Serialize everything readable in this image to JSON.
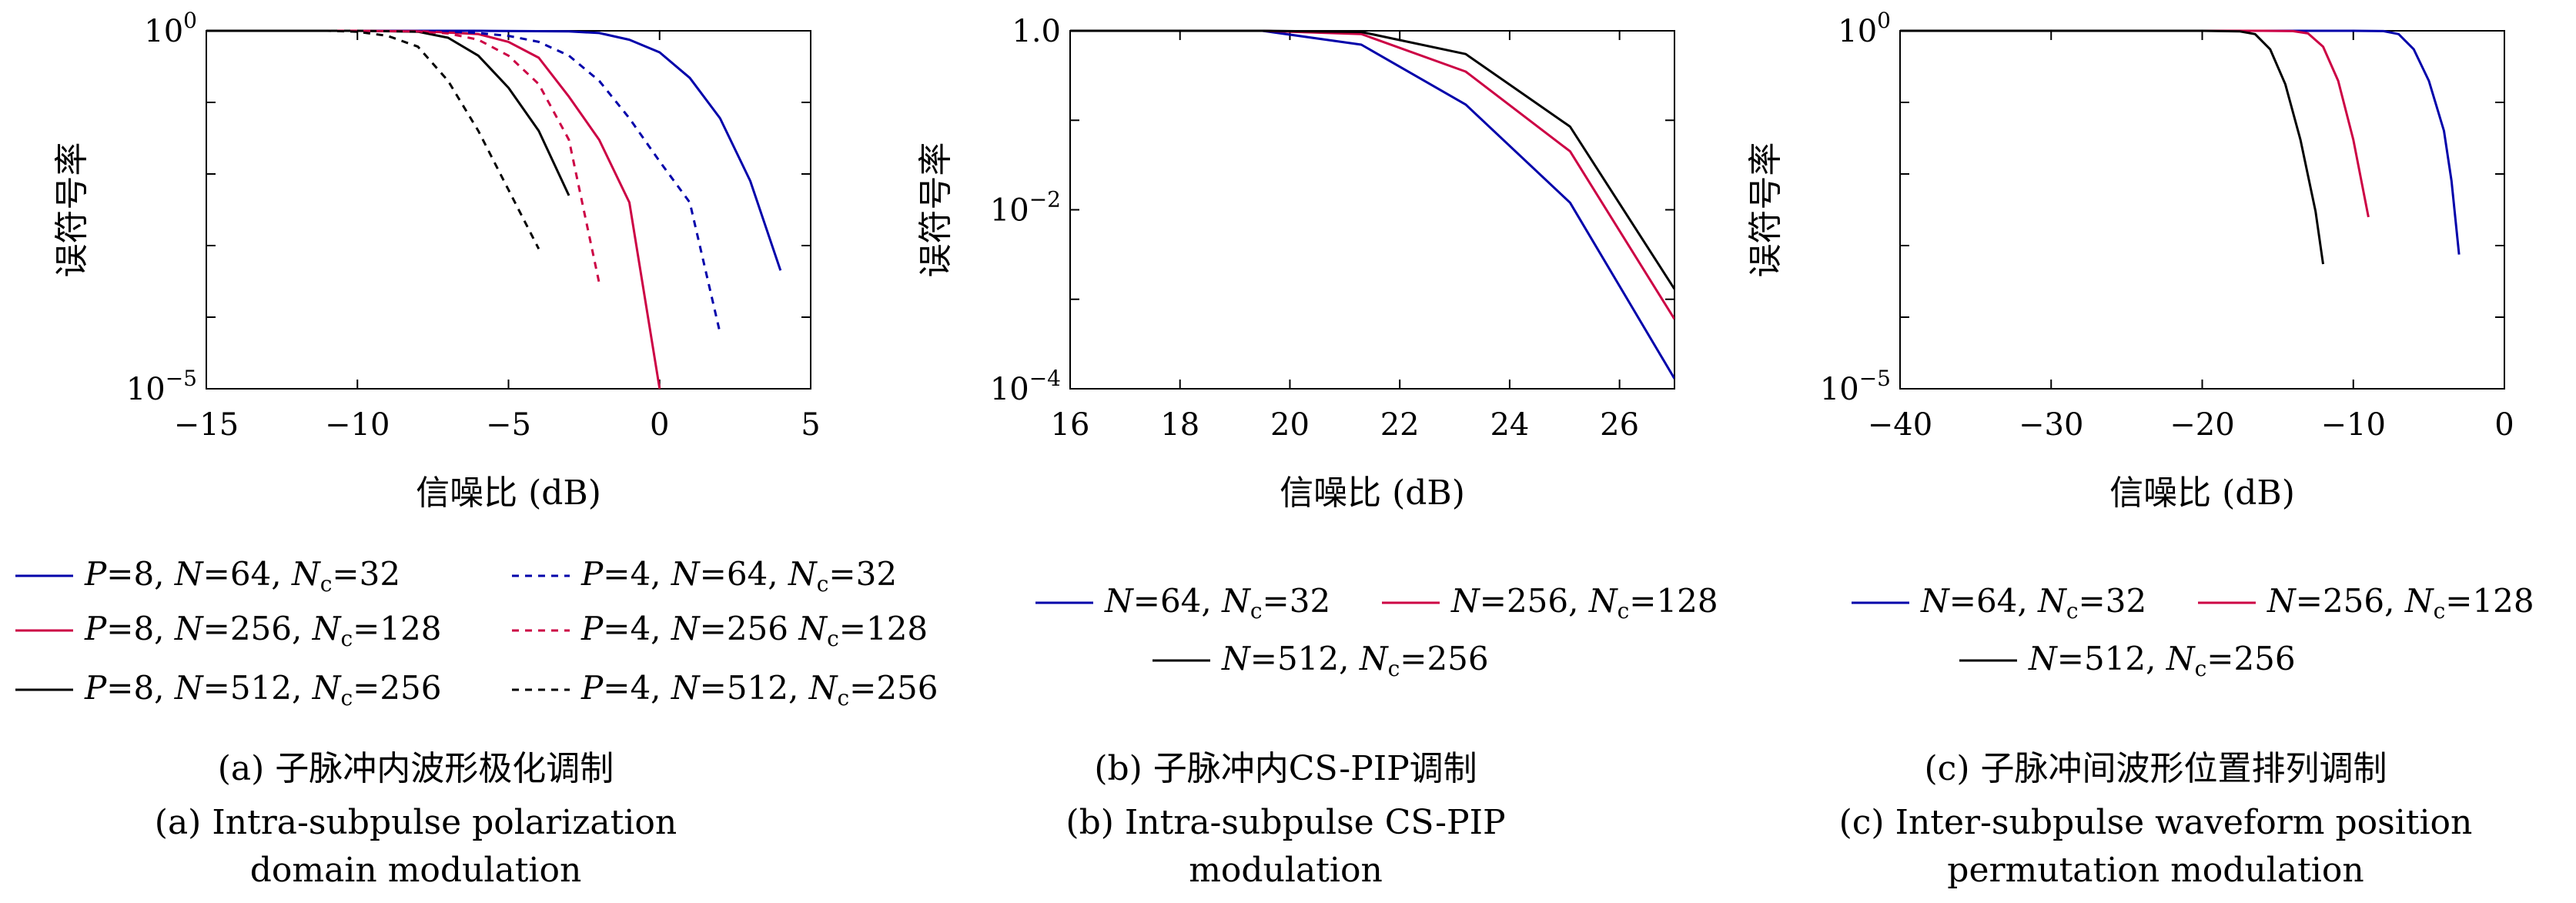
{
  "colors": {
    "blue": "#0000aa",
    "red": "#cc0044",
    "black": "#000000"
  },
  "chart_data": [
    {
      "id": "a",
      "type": "line",
      "xscale": "linear",
      "yscale": "log",
      "xlim": [
        -15,
        5
      ],
      "ylim": [
        1e-05,
        1
      ],
      "xticks": [
        -15,
        -10,
        -5,
        0,
        5
      ],
      "xtick_labels": [
        "−15",
        "−10",
        "−5",
        "0",
        "5"
      ],
      "yticks": [
        {
          "value": 1,
          "base": "10",
          "exp": "0"
        },
        {
          "value": 1e-05,
          "base": "10",
          "exp": "−5"
        }
      ],
      "xlabel": "信噪比 (dB)",
      "ylabel": "误符号率",
      "caption_cn": "(a) 子脉冲内波形极化调制",
      "caption_en": [
        "(a) Intra-subpulse polarization",
        "domain modulation"
      ],
      "series": [
        {
          "legend": [
            "P",
            "=8, ",
            "N",
            "=64, ",
            "N",
            "c",
            "=32"
          ],
          "color": "#0000aa",
          "dash": false,
          "points": [
            [
              -15,
              1
            ],
            [
              -10,
              1
            ],
            [
              -6,
              1
            ],
            [
              -3,
              0.98
            ],
            [
              -2,
              0.93
            ],
            [
              -1,
              0.75
            ],
            [
              0,
              0.5
            ],
            [
              1,
              0.22
            ],
            [
              2,
              0.06
            ],
            [
              3,
              0.008
            ],
            [
              4,
              0.00045
            ]
          ]
        },
        {
          "legend": [
            "P",
            "=8, ",
            "N",
            "=256, ",
            "N",
            "c",
            "=128"
          ],
          "color": "#cc0044",
          "dash": false,
          "points": [
            [
              -15,
              1
            ],
            [
              -10,
              1
            ],
            [
              -8,
              0.99
            ],
            [
              -6,
              0.9
            ],
            [
              -5,
              0.7
            ],
            [
              -4,
              0.42
            ],
            [
              -3,
              0.12
            ],
            [
              -2,
              0.03
            ],
            [
              -1,
              0.004
            ],
            [
              0,
              1e-05
            ]
          ]
        },
        {
          "legend": [
            "P",
            "=8, ",
            "N",
            "=512, ",
            "N",
            "c",
            "=256"
          ],
          "color": "#000000",
          "dash": false,
          "points": [
            [
              -15,
              1
            ],
            [
              -10,
              1
            ],
            [
              -8,
              0.97
            ],
            [
              -7,
              0.8
            ],
            [
              -6,
              0.45
            ],
            [
              -5,
              0.16
            ],
            [
              -4,
              0.04
            ],
            [
              -3,
              0.005
            ]
          ]
        },
        {
          "legend": [
            "P",
            "=4, ",
            "N",
            "=64, ",
            "N",
            "c",
            "=32"
          ],
          "color": "#0000aa",
          "dash": true,
          "points": [
            [
              -15,
              1
            ],
            [
              -10,
              1
            ],
            [
              -7,
              0.98
            ],
            [
              -6,
              0.93
            ],
            [
              -5,
              0.85
            ],
            [
              -4,
              0.7
            ],
            [
              -3,
              0.45
            ],
            [
              -2,
              0.2
            ],
            [
              -1,
              0.06
            ],
            [
              0,
              0.015
            ],
            [
              1,
              0.004
            ],
            [
              2,
              6e-05
            ]
          ]
        },
        {
          "legend": [
            "P",
            "=4, ",
            "N",
            "=256 ",
            "N",
            "c",
            "=128"
          ],
          "color": "#cc0044",
          "dash": true,
          "points": [
            [
              -15,
              1
            ],
            [
              -10,
              1
            ],
            [
              -8,
              0.98
            ],
            [
              -7,
              0.92
            ],
            [
              -6,
              0.75
            ],
            [
              -5,
              0.45
            ],
            [
              -4,
              0.18
            ],
            [
              -3,
              0.03
            ],
            [
              -2,
              0.0003
            ]
          ]
        },
        {
          "legend": [
            "P",
            "=4, ",
            "N",
            "=512, ",
            "N",
            "c",
            "=256"
          ],
          "color": "#000000",
          "dash": true,
          "points": [
            [
              -15,
              1
            ],
            [
              -11,
              1
            ],
            [
              -10,
              0.97
            ],
            [
              -9,
              0.85
            ],
            [
              -8,
              0.6
            ],
            [
              -7,
              0.2
            ],
            [
              -6,
              0.04
            ],
            [
              -5,
              0.006
            ],
            [
              -4,
              0.0009
            ]
          ]
        }
      ]
    },
    {
      "id": "b",
      "type": "line",
      "xscale": "linear",
      "yscale": "log",
      "xlim": [
        16,
        27
      ],
      "ylim": [
        0.0001,
        1
      ],
      "xticks": [
        16,
        18,
        20,
        22,
        24,
        26
      ],
      "xtick_labels": [
        "16",
        "18",
        "20",
        "22",
        "24",
        "26"
      ],
      "yticks": [
        {
          "value": 1,
          "base": "1.0",
          "exp": ""
        },
        {
          "value": 0.01,
          "base": "10",
          "exp": "−2"
        },
        {
          "value": 0.0001,
          "base": "10",
          "exp": "−4"
        }
      ],
      "xlabel": "信噪比 (dB)",
      "ylabel": "误符号率",
      "caption_cn": "(b) 子脉冲内CS-PIP调制",
      "caption_en": [
        "(b) Intra-subpulse CS-PIP",
        "modulation"
      ],
      "series": [
        {
          "legend": [
            "N",
            "=64, ",
            "N",
            "c",
            "=32"
          ],
          "color": "#0000aa",
          "dash": false,
          "points": [
            [
              16,
              1
            ],
            [
              19.5,
              1
            ],
            [
              21.3,
              0.7
            ],
            [
              23.2,
              0.15
            ],
            [
              25.1,
              0.012
            ],
            [
              27,
              0.00013
            ]
          ]
        },
        {
          "legend": [
            "N",
            "=256, ",
            "N",
            "c",
            "=128"
          ],
          "color": "#cc0044",
          "dash": false,
          "points": [
            [
              16,
              1
            ],
            [
              19.5,
              1
            ],
            [
              21.3,
              0.92
            ],
            [
              23.2,
              0.35
            ],
            [
              25.1,
              0.045
            ],
            [
              27,
              0.0006
            ]
          ]
        },
        {
          "legend": [
            "N",
            "=512, ",
            "N",
            "c",
            "=256"
          ],
          "color": "#000000",
          "dash": false,
          "points": [
            [
              16,
              1
            ],
            [
              19.5,
              1
            ],
            [
              21.3,
              0.97
            ],
            [
              23.2,
              0.55
            ],
            [
              25.1,
              0.085
            ],
            [
              27,
              0.0013
            ]
          ]
        }
      ]
    },
    {
      "id": "c",
      "type": "line",
      "xscale": "linear",
      "yscale": "log",
      "xlim": [
        -40,
        0
      ],
      "ylim": [
        1e-05,
        1
      ],
      "xticks": [
        -40,
        -30,
        -20,
        -10,
        0
      ],
      "xtick_labels": [
        "−40",
        "−30",
        "−20",
        "−10",
        "0"
      ],
      "yticks": [
        {
          "value": 1,
          "base": "10",
          "exp": "0"
        },
        {
          "value": 1e-05,
          "base": "10",
          "exp": "−5"
        }
      ],
      "xlabel": "信噪比 (dB)",
      "ylabel": "误符号率",
      "caption_cn": "(c) 子脉冲间波形位置排列调制",
      "caption_en": [
        "(c) Inter-subpulse waveform position",
        "permutation modulation"
      ],
      "series": [
        {
          "legend": [
            "N",
            "=64, ",
            "N",
            "c",
            "=32"
          ],
          "color": "#0000aa",
          "dash": false,
          "points": [
            [
              -40,
              1
            ],
            [
              -10,
              1
            ],
            [
              -8,
              0.99
            ],
            [
              -7,
              0.9
            ],
            [
              -6,
              0.55
            ],
            [
              -5,
              0.2
            ],
            [
              -4,
              0.04
            ],
            [
              -3.5,
              0.008
            ],
            [
              -3,
              0.00075
            ]
          ]
        },
        {
          "legend": [
            "N",
            "=256, ",
            "N",
            "c",
            "=128"
          ],
          "color": "#cc0044",
          "dash": false,
          "points": [
            [
              -40,
              1
            ],
            [
              -16,
              1
            ],
            [
              -14,
              0.99
            ],
            [
              -13,
              0.92
            ],
            [
              -12,
              0.6
            ],
            [
              -11,
              0.2
            ],
            [
              -10,
              0.03
            ],
            [
              -9,
              0.0025
            ]
          ]
        },
        {
          "legend": [
            "N",
            "=512, ",
            "N",
            "c",
            "=256"
          ],
          "color": "#000000",
          "dash": false,
          "points": [
            [
              -40,
              1
            ],
            [
              -20,
              1
            ],
            [
              -17.5,
              0.98
            ],
            [
              -16.5,
              0.9
            ],
            [
              -15.5,
              0.55
            ],
            [
              -14.5,
              0.18
            ],
            [
              -13.5,
              0.03
            ],
            [
              -12.5,
              0.003
            ],
            [
              -12,
              0.00055
            ]
          ]
        }
      ]
    }
  ]
}
